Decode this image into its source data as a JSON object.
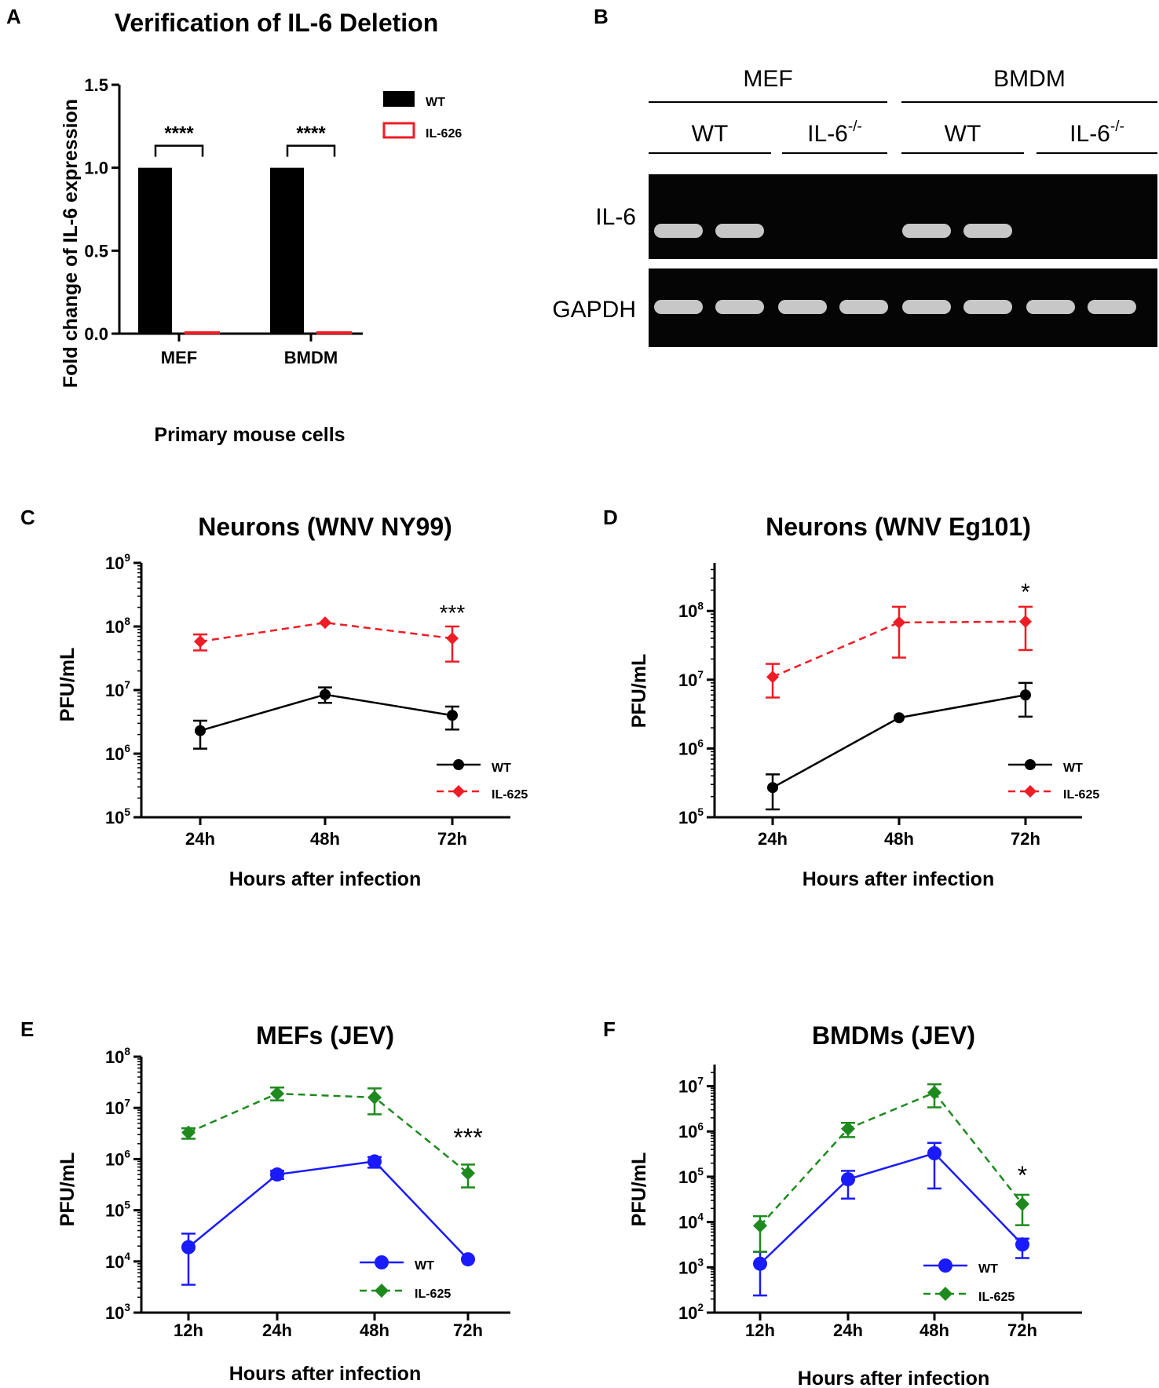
{
  "panelA": {
    "letter": "A",
    "chart_data": {
      "type": "bar",
      "title": "Verification of IL-6 Deletion",
      "xlabel": "Primary mouse cells",
      "ylabel": "Fold change of IL-6 expression",
      "categories": [
        "MEF",
        "BMDM"
      ],
      "ylim": [
        0,
        1.5
      ],
      "yticks": [
        "0.0",
        "0.5",
        "1.0",
        "1.5"
      ],
      "series": [
        {
          "name": "WT",
          "values": [
            1.0,
            1.0
          ],
          "color": "#000000"
        },
        {
          "name": "IL-6",
          "name_sup": "-/-",
          "values": [
            0.005,
            0.005
          ],
          "color": "#ee1c25"
        }
      ],
      "legend": "top-right",
      "significance": [
        "****",
        "****"
      ]
    }
  },
  "panelB": {
    "letter": "B",
    "groups": [
      "MEF",
      "BMDM"
    ],
    "subgroups": [
      {
        "label": "WT",
        "sup": ""
      },
      {
        "label": "IL-6",
        "sup": "-/-"
      },
      {
        "label": "WT",
        "sup": ""
      },
      {
        "label": "IL-6",
        "sup": "-/-"
      }
    ],
    "rows": [
      {
        "label": "IL-6",
        "bands": [
          1,
          1,
          0,
          0,
          1,
          1,
          0,
          0
        ]
      },
      {
        "label": "GAPDH",
        "bands": [
          1,
          1,
          1,
          1,
          1,
          1,
          1,
          1
        ]
      }
    ]
  },
  "panelC": {
    "letter": "C",
    "chart_data": {
      "type": "line",
      "title": "Neurons (WNV NY99)",
      "xlabel": "Hours after infection",
      "ylabel": "PFU/mL",
      "categories": [
        "24h",
        "48h",
        "72h"
      ],
      "yscale": "log",
      "ylim": [
        100000,
        1000000000
      ],
      "yticks": [
        {
          "base": "10",
          "exp": "5"
        },
        {
          "base": "10",
          "exp": "6"
        },
        {
          "base": "10",
          "exp": "7"
        },
        {
          "base": "10",
          "exp": "8"
        },
        {
          "base": "10",
          "exp": "9"
        }
      ],
      "series": [
        {
          "name": "WT",
          "marker": "circle",
          "dash": false,
          "color": "#000000",
          "values": [
            2300000,
            8500000,
            4000000
          ],
          "err_low": [
            1200000,
            6300000,
            2400000
          ],
          "err_high": [
            3300000,
            11000000,
            5500000
          ]
        },
        {
          "name": "IL-6",
          "name_sup": "-/-",
          "marker": "diamond",
          "dash": true,
          "color": "#ee1c25",
          "values": [
            58000000,
            115000000,
            65000000
          ],
          "err_low": [
            42000000,
            115000000,
            28000000
          ],
          "err_high": [
            75000000,
            115000000,
            100000000
          ]
        }
      ],
      "legend": "bottom-right",
      "annotations": [
        {
          "text": "***",
          "category": "72h"
        }
      ]
    }
  },
  "panelD": {
    "letter": "D",
    "chart_data": {
      "type": "line",
      "title": "Neurons (WNV Eg101)",
      "xlabel": "Hours after infection",
      "ylabel": "PFU/mL",
      "categories": [
        "24h",
        "48h",
        "72h"
      ],
      "yscale": "log",
      "ylim": [
        100000,
        500000000
      ],
      "yticks": [
        {
          "base": "10",
          "exp": "5"
        },
        {
          "base": "10",
          "exp": "6"
        },
        {
          "base": "10",
          "exp": "7"
        },
        {
          "base": "10",
          "exp": "8"
        }
      ],
      "series": [
        {
          "name": "WT",
          "marker": "circle",
          "dash": false,
          "color": "#000000",
          "values": [
            270000,
            2800000,
            6000000
          ],
          "err_low": [
            130000,
            2800000,
            2900000
          ],
          "err_high": [
            420000,
            2800000,
            9000000
          ]
        },
        {
          "name": "IL-6",
          "name_sup": "-/-",
          "marker": "diamond",
          "dash": true,
          "color": "#ee1c25",
          "values": [
            11000000,
            68000000,
            70000000
          ],
          "err_low": [
            5500000,
            21000000,
            27000000
          ],
          "err_high": [
            17000000,
            115000000,
            115000000
          ]
        }
      ],
      "legend": "bottom-right",
      "annotations": [
        {
          "text": "*",
          "category": "72h"
        }
      ]
    }
  },
  "panelE": {
    "letter": "E",
    "chart_data": {
      "type": "line",
      "title": "MEFs (JEV)",
      "xlabel": "Hours after infection",
      "ylabel": "PFU/mL",
      "categories": [
        "12h",
        "24h",
        "48h",
        "72h"
      ],
      "yscale": "log",
      "ylim": [
        1000,
        100000000
      ],
      "yticks": [
        {
          "base": "10",
          "exp": "3"
        },
        {
          "base": "10",
          "exp": "4"
        },
        {
          "base": "10",
          "exp": "5"
        },
        {
          "base": "10",
          "exp": "6"
        },
        {
          "base": "10",
          "exp": "7"
        },
        {
          "base": "10",
          "exp": "8"
        }
      ],
      "series": [
        {
          "name": "WT",
          "marker": "circle",
          "dash": false,
          "color": "#1a1aff",
          "values": [
            19000,
            500000,
            900000,
            11000
          ],
          "err_low": [
            3500,
            410000,
            680000,
            11000
          ],
          "err_high": [
            35000,
            590000,
            1100000,
            11000
          ]
        },
        {
          "name": "IL-6",
          "name_sup": "-/-",
          "marker": "diamond",
          "dash": true,
          "color": "#1e8a1e",
          "values": [
            3300000,
            19000000,
            16000000,
            530000
          ],
          "err_low": [
            2500000,
            14000000,
            7500000,
            280000
          ],
          "err_high": [
            4000000,
            25000000,
            24000000,
            780000
          ]
        }
      ],
      "legend": "bottom-right",
      "annotations": [
        {
          "text": "***",
          "category": "72h"
        }
      ]
    }
  },
  "panelF": {
    "letter": "F",
    "chart_data": {
      "type": "line",
      "title": "BMDMs (JEV)",
      "xlabel": "Hours after infection",
      "ylabel": "PFU/mL",
      "categories": [
        "12h",
        "24h",
        "48h",
        "72h"
      ],
      "yscale": "log",
      "ylim": [
        100,
        30000000
      ],
      "yticks": [
        {
          "base": "10",
          "exp": "2"
        },
        {
          "base": "10",
          "exp": "3"
        },
        {
          "base": "10",
          "exp": "4"
        },
        {
          "base": "10",
          "exp": "5"
        },
        {
          "base": "10",
          "exp": "6"
        },
        {
          "base": "10",
          "exp": "7"
        }
      ],
      "series": [
        {
          "name": "WT",
          "marker": "circle",
          "dash": false,
          "color": "#1a1aff",
          "values": [
            1200,
            88000,
            330000,
            3200
          ],
          "err_low": [
            240,
            33000,
            55000,
            1600
          ],
          "err_high": [
            2200,
            135000,
            560000,
            4300
          ]
        },
        {
          "name": "IL-6",
          "name_sup": "-/-",
          "marker": "diamond",
          "dash": true,
          "color": "#1e8a1e",
          "values": [
            8300,
            1150000,
            7200000,
            25000
          ],
          "err_low": [
            2200,
            750000,
            3400000,
            8500
          ],
          "err_high": [
            13500,
            1550000,
            11000000,
            40000
          ]
        }
      ],
      "legend": "bottom-right",
      "annotations": [
        {
          "text": "*",
          "category": "72h"
        }
      ]
    }
  }
}
